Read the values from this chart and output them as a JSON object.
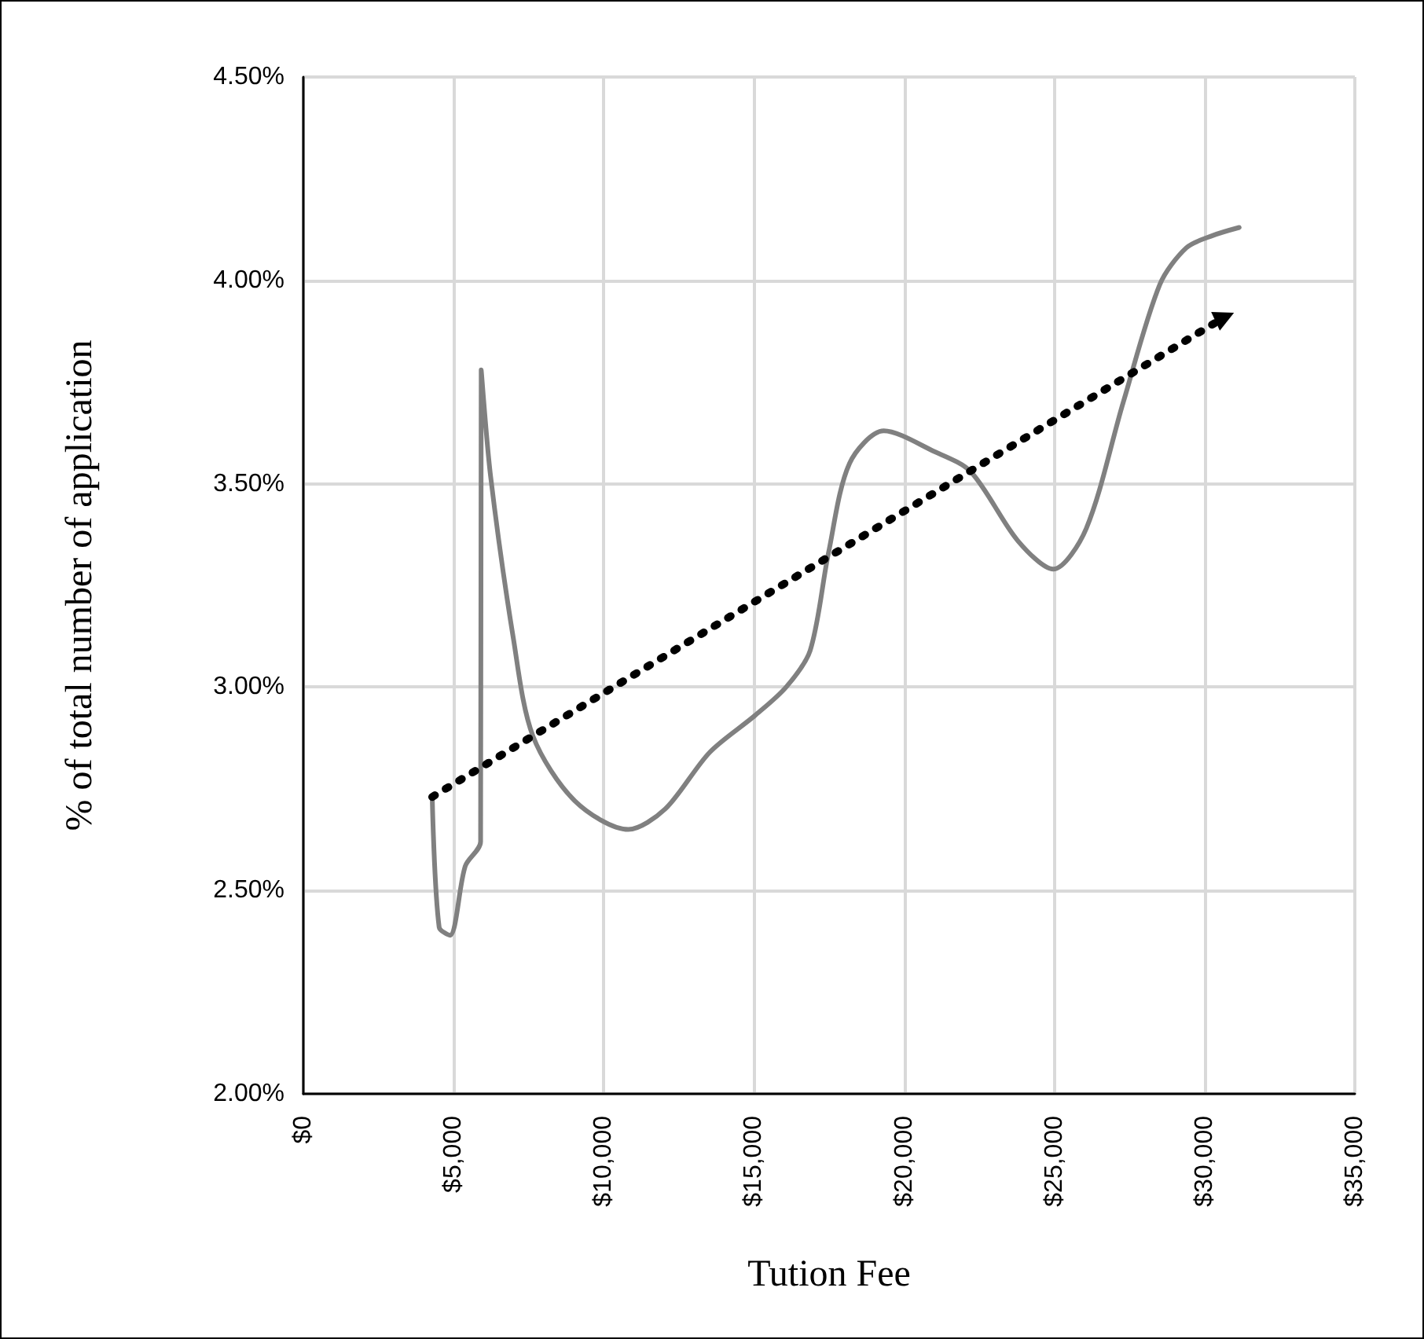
{
  "chart_data": {
    "type": "line",
    "xlabel": "Tution Fee",
    "ylabel": "% of total number of application",
    "xlim": [
      0,
      35000
    ],
    "xticks": [
      {
        "value": 0,
        "label": "$0"
      },
      {
        "value": 5000,
        "label": "$5,000"
      },
      {
        "value": 10000,
        "label": "$10,000"
      },
      {
        "value": 15000,
        "label": "$15,000"
      },
      {
        "value": 20000,
        "label": "$20,000"
      },
      {
        "value": 25000,
        "label": "$25,000"
      },
      {
        "value": 30000,
        "label": "$30,000"
      },
      {
        "value": 35000,
        "label": "$35,000"
      }
    ],
    "ylim": [
      2,
      4.5
    ],
    "yticks": [
      {
        "value": 2,
        "label": "2.00%"
      },
      {
        "value": 2.5,
        "label": "2.50%"
      },
      {
        "value": 3,
        "label": "3.00%"
      },
      {
        "value": 3.5,
        "label": "3.50%"
      },
      {
        "value": 4,
        "label": "4.00%"
      },
      {
        "value": 4.5,
        "label": "4.50%"
      }
    ],
    "grid": true,
    "series": [
      {
        "color": "#808080",
        "line_style": "solid",
        "x": [
          4290,
          4520,
          4880,
          5390,
          5900,
          5920,
          6230,
          6990,
          7640,
          9040,
          10820,
          12040,
          13530,
          15030,
          16070,
          16870,
          17480,
          18180,
          19320,
          20980,
          22210,
          23780,
          24960,
          26060,
          27290,
          28510,
          29390,
          30260,
          31150
        ],
        "values": [
          2.73,
          2.41,
          2.39,
          2.56,
          2.62,
          3.78,
          3.52,
          3.12,
          2.88,
          2.72,
          2.65,
          2.7,
          2.84,
          2.93,
          3.0,
          3.09,
          3.33,
          3.55,
          3.63,
          3.58,
          3.53,
          3.36,
          3.29,
          3.39,
          3.7,
          3.99,
          4.08,
          4.11,
          4.13
        ]
      },
      {
        "color": "#000000",
        "line_style": "dotted",
        "x": [
          4290,
          30670
        ],
        "values": [
          2.73,
          3.91
        ]
      }
    ]
  }
}
